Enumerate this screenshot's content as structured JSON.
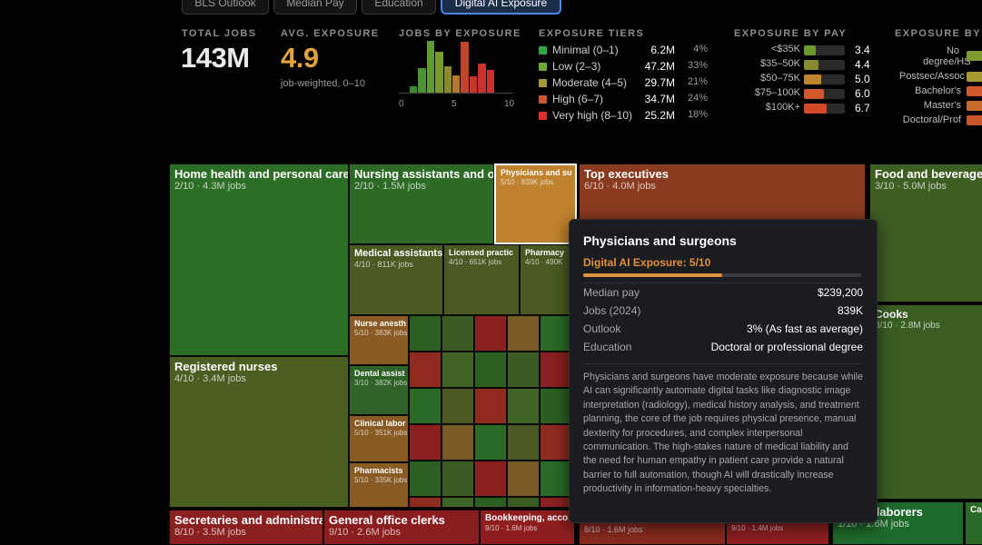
{
  "tabs": [
    {
      "label": "BLS Outlook",
      "active": false
    },
    {
      "label": "Median Pay",
      "active": false
    },
    {
      "label": "Education",
      "active": false
    },
    {
      "label": "Digital AI Exposure",
      "active": true
    }
  ],
  "stats": {
    "total_jobs_label": "TOTAL JOBS",
    "total_jobs_value": "143M",
    "avg_exposure_label": "AVG. EXPOSURE",
    "avg_exposure_value": "4.9",
    "avg_exposure_note": "job-weighted, 0–10",
    "avg_color": "#e0a33a"
  },
  "histogram": {
    "label": "JOBS BY EXPOSURE",
    "ticks": [
      "0",
      "5",
      "10"
    ],
    "bars": [
      {
        "x": 1,
        "value": 0.13,
        "color": "#3f8a2f"
      },
      {
        "x": 2,
        "value": 0.48,
        "color": "#4a9433"
      },
      {
        "x": 3,
        "value": 1.0,
        "color": "#5f9a32"
      },
      {
        "x": 4,
        "value": 0.79,
        "color": "#7a9a2e"
      },
      {
        "x": 5,
        "value": 0.51,
        "color": "#8b8a2b"
      },
      {
        "x": 6,
        "value": 0.33,
        "color": "#b07a2a"
      },
      {
        "x": 7,
        "value": 0.98,
        "color": "#c0452a"
      },
      {
        "x": 8,
        "value": 0.31,
        "color": "#c0392b"
      },
      {
        "x": 9,
        "value": 0.57,
        "color": "#c8332d"
      },
      {
        "x": 10,
        "value": 0.43,
        "color": "#d0302d"
      }
    ]
  },
  "tiers": {
    "label": "EXPOSURE TIERS",
    "rows": [
      {
        "name": "Minimal (0–1)",
        "jobs": "6.2M",
        "pct": "4%",
        "color": "#2fa84a"
      },
      {
        "name": "Low (2–3)",
        "jobs": "47.2M",
        "pct": "33%",
        "color": "#6ea832"
      },
      {
        "name": "Moderate (4–5)",
        "jobs": "29.7M",
        "pct": "21%",
        "color": "#a89a32"
      },
      {
        "name": "High (6–7)",
        "jobs": "34.7M",
        "pct": "24%",
        "color": "#d0582c"
      },
      {
        "name": "Very high (8–10)",
        "jobs": "25.2M",
        "pct": "18%",
        "color": "#e0302d"
      }
    ]
  },
  "by_pay": {
    "label": "EXPOSURE BY PAY",
    "rows": [
      {
        "label": "<$35K",
        "value": "3.4",
        "fill": 0.34,
        "color": "#6a9a2e"
      },
      {
        "label": "$35–50K",
        "value": "4.4",
        "fill": 0.44,
        "color": "#8a8a2e"
      },
      {
        "label": "$50–75K",
        "value": "5.0",
        "fill": 0.5,
        "color": "#c0862e"
      },
      {
        "label": "$75–100K",
        "value": "6.0",
        "fill": 0.6,
        "color": "#d0582c"
      },
      {
        "label": "$100K+",
        "value": "6.7",
        "fill": 0.67,
        "color": "#d6482c"
      }
    ]
  },
  "by_edu": {
    "label": "EXPOSURE BY E",
    "rows": [
      {
        "label": "No degree/HS",
        "color": "#7f9a2e"
      },
      {
        "label": "Postsec/Assoc",
        "color": "#a89a32"
      },
      {
        "label": "Bachelor's",
        "color": "#d0582c"
      },
      {
        "label": "Master's",
        "color": "#c86a2c"
      },
      {
        "label": "Doctoral/Prof",
        "color": "#c8582c"
      }
    ]
  },
  "treemap": [
    {
      "title": "Home health and personal care",
      "sub": "2/10 · 4.3M jobs",
      "color": "#2c6e26",
      "size": "big"
    },
    {
      "title": "Registered nurses",
      "sub": "4/10 · 3.4M jobs",
      "color": "#4a5e22",
      "size": "big"
    },
    {
      "title": "Nursing assistants and o",
      "sub": "2/10 · 1.5M jobs",
      "color": "#2c6a26",
      "size": "big"
    },
    {
      "title": "Physicians and su",
      "sub": "5/10 · 839K jobs",
      "color": "#c0822e",
      "size": "xs"
    },
    {
      "title": "Top executives",
      "sub": "6/10 · 4.0M jobs",
      "color": "#8a3a1e",
      "size": "big"
    },
    {
      "title": "Food and beverage",
      "sub": "3/10 · 5.0M jobs",
      "color": "#3e5e22",
      "size": "big"
    },
    {
      "title": "Cooks",
      "sub": "3/10 · 2.8M jobs",
      "color": "#3a5e22",
      "size": "big"
    },
    {
      "title": "Medical assistants",
      "sub": "4/10 · 811K jobs",
      "color": "#4a5a22",
      "size": "sm"
    },
    {
      "title": "Licensed practic",
      "sub": "4/10 · 651K jobs",
      "color": "#4a5a22",
      "size": "xs"
    },
    {
      "title": "Pharmacy",
      "sub": "4/10 · 490K",
      "color": "#4a5a22",
      "size": "xs"
    },
    {
      "title": "Nurse anesth",
      "sub": "5/10 · 383K jobs",
      "color": "#8a5a24",
      "size": "xs"
    },
    {
      "title": "Dental assist",
      "sub": "3/10 · 382K jobs",
      "color": "#2e6226",
      "size": "xs"
    },
    {
      "title": "Clinical labor",
      "sub": "5/10 · 351K jobs",
      "color": "#8a5a24",
      "size": "xs"
    },
    {
      "title": "Pharmacists",
      "sub": "5/10 · 335K jobs",
      "color": "#8a5a24",
      "size": "xs"
    },
    {
      "title": "Secretaries and administra",
      "sub": "8/10 · 3.5M jobs",
      "color": "#8a2020",
      "size": "big"
    },
    {
      "title": "General office clerks",
      "sub": "9/10 · 2.6M jobs",
      "color": "#8a1e1e",
      "size": "big"
    },
    {
      "title": "Bookkeeping, acco",
      "sub": "9/10 · 1.6M jobs",
      "color": "#8e1e1e",
      "size": "xs"
    },
    {
      "title": "",
      "sub": "8/10 · 1.6M jobs",
      "color": "#8a2a1e",
      "size": "big"
    },
    {
      "title": "",
      "sub": "9/10 · 1.4M jobs",
      "color": "#8e1e1e",
      "size": "xs"
    },
    {
      "title": "uction laborers",
      "sub": "1/10 · 1.6M jobs",
      "color": "#1e6a2a",
      "size": "big"
    },
    {
      "title": "Car",
      "sub": "",
      "color": "#2a6a26",
      "size": "xs"
    }
  ],
  "tooltip": {
    "title": "Physicians and surgeons",
    "exposure_label": "Digital AI Exposure: 5/10",
    "exposure_value": 0.5,
    "accent": "#e0923a",
    "rows": [
      {
        "k": "Median pay",
        "v": "$239,200"
      },
      {
        "k": "Jobs (2024)",
        "v": "839K"
      },
      {
        "k": "Outlook",
        "v": "3% (As fast as average)"
      },
      {
        "k": "Education",
        "v": "Doctoral or professional degree"
      }
    ],
    "description": "Physicians and surgeons have moderate exposure because while AI can significantly automate digital tasks like diagnostic image interpretation (radiology), medical history analysis, and treatment planning, the core of the job requires physical presence, manual dexterity for procedures, and complex interpersonal communication. The high-stakes nature of medical liability and the need for human empathy in patient care provide a natural barrier to full automation, though AI will drastically increase productivity in information-heavy specialties."
  }
}
